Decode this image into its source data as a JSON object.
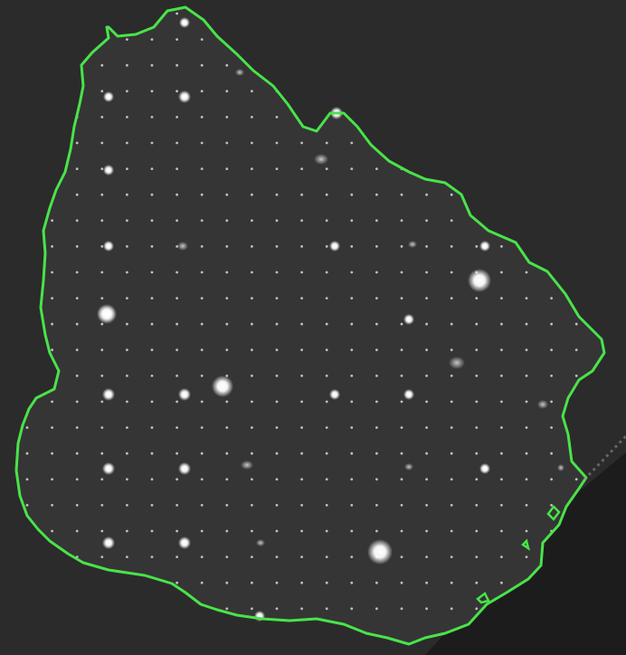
{
  "image": {
    "colors": {
      "background": "#2b2b2b",
      "land": "#353535",
      "boundary": "#49e34a",
      "grid_dot": "#d8d8d8",
      "bright_spot": "#ffffff"
    }
  }
}
